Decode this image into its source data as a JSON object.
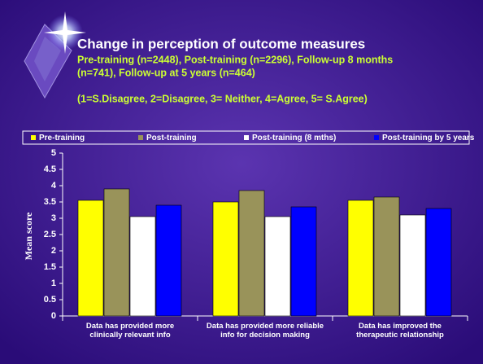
{
  "chart_data": {
    "type": "bar",
    "title": "Change in perception of outcome measures",
    "subtitle": [
      "Pre-training (n=2448), Post-training (n=2296), Follow-up 8 months",
      "(n=741), Follow-up at 5 years (n=464)"
    ],
    "note": "(1=S.Disagree, 2=Disagree, 3= Neither, 4=Agree, 5= S.Agree)",
    "y_label": "Mean score",
    "categories": [
      "Data has provided more clinically relevant info",
      "Data has provided more reliable info for decision making",
      "Data has improved the therapeutic relationship"
    ],
    "series": [
      {
        "name": "Pre-training",
        "color": "#ffff00",
        "values": [
          3.55,
          3.5,
          3.55
        ]
      },
      {
        "name": "Post-training",
        "color": "#99935a",
        "values": [
          3.9,
          3.85,
          3.65
        ]
      },
      {
        "name": "Post-training (8 mths)",
        "color": "#ffffff",
        "values": [
          3.05,
          3.05,
          3.1
        ]
      },
      {
        "name": "Post-training by 5 years",
        "color": "#0000ff",
        "values": [
          3.4,
          3.35,
          3.3
        ]
      }
    ],
    "ylim": [
      0,
      5
    ],
    "yticks": [
      0,
      0.5,
      1,
      1.5,
      2,
      2.5,
      3,
      3.5,
      4,
      4.5,
      5
    ],
    "grid": false,
    "legend": "top"
  }
}
